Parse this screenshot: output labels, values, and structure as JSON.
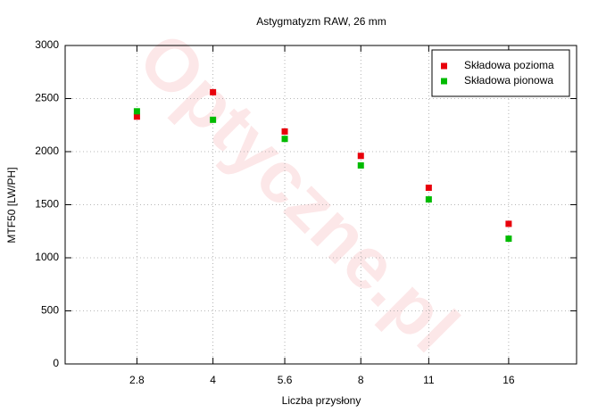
{
  "chart_data": {
    "type": "scatter",
    "title": "Astygmatyzm RAW, 26 mm",
    "x_label": "Liczba przysłony",
    "y_label": "MTF50 [LW/PH]",
    "watermark": "Optyczne.pl",
    "x": [
      2.8,
      4,
      5.6,
      8,
      11,
      16
    ],
    "x_log": true,
    "xlim": [
      2,
      22
    ],
    "xticks": [
      2.8,
      4,
      5.6,
      8,
      11,
      16
    ],
    "ylim": [
      0,
      3000
    ],
    "yticks": [
      0,
      500,
      1000,
      1500,
      2000,
      2500,
      3000
    ],
    "grid": true,
    "legend": "top-right",
    "series": [
      {
        "name": "Składowa pozioma",
        "color": "#e8000b",
        "values": [
          2330,
          2560,
          2190,
          1960,
          1660,
          1320
        ]
      },
      {
        "name": "Składowa pionowa",
        "color": "#00bb00",
        "values": [
          2380,
          2300,
          2120,
          1870,
          1550,
          1180
        ]
      }
    ]
  }
}
